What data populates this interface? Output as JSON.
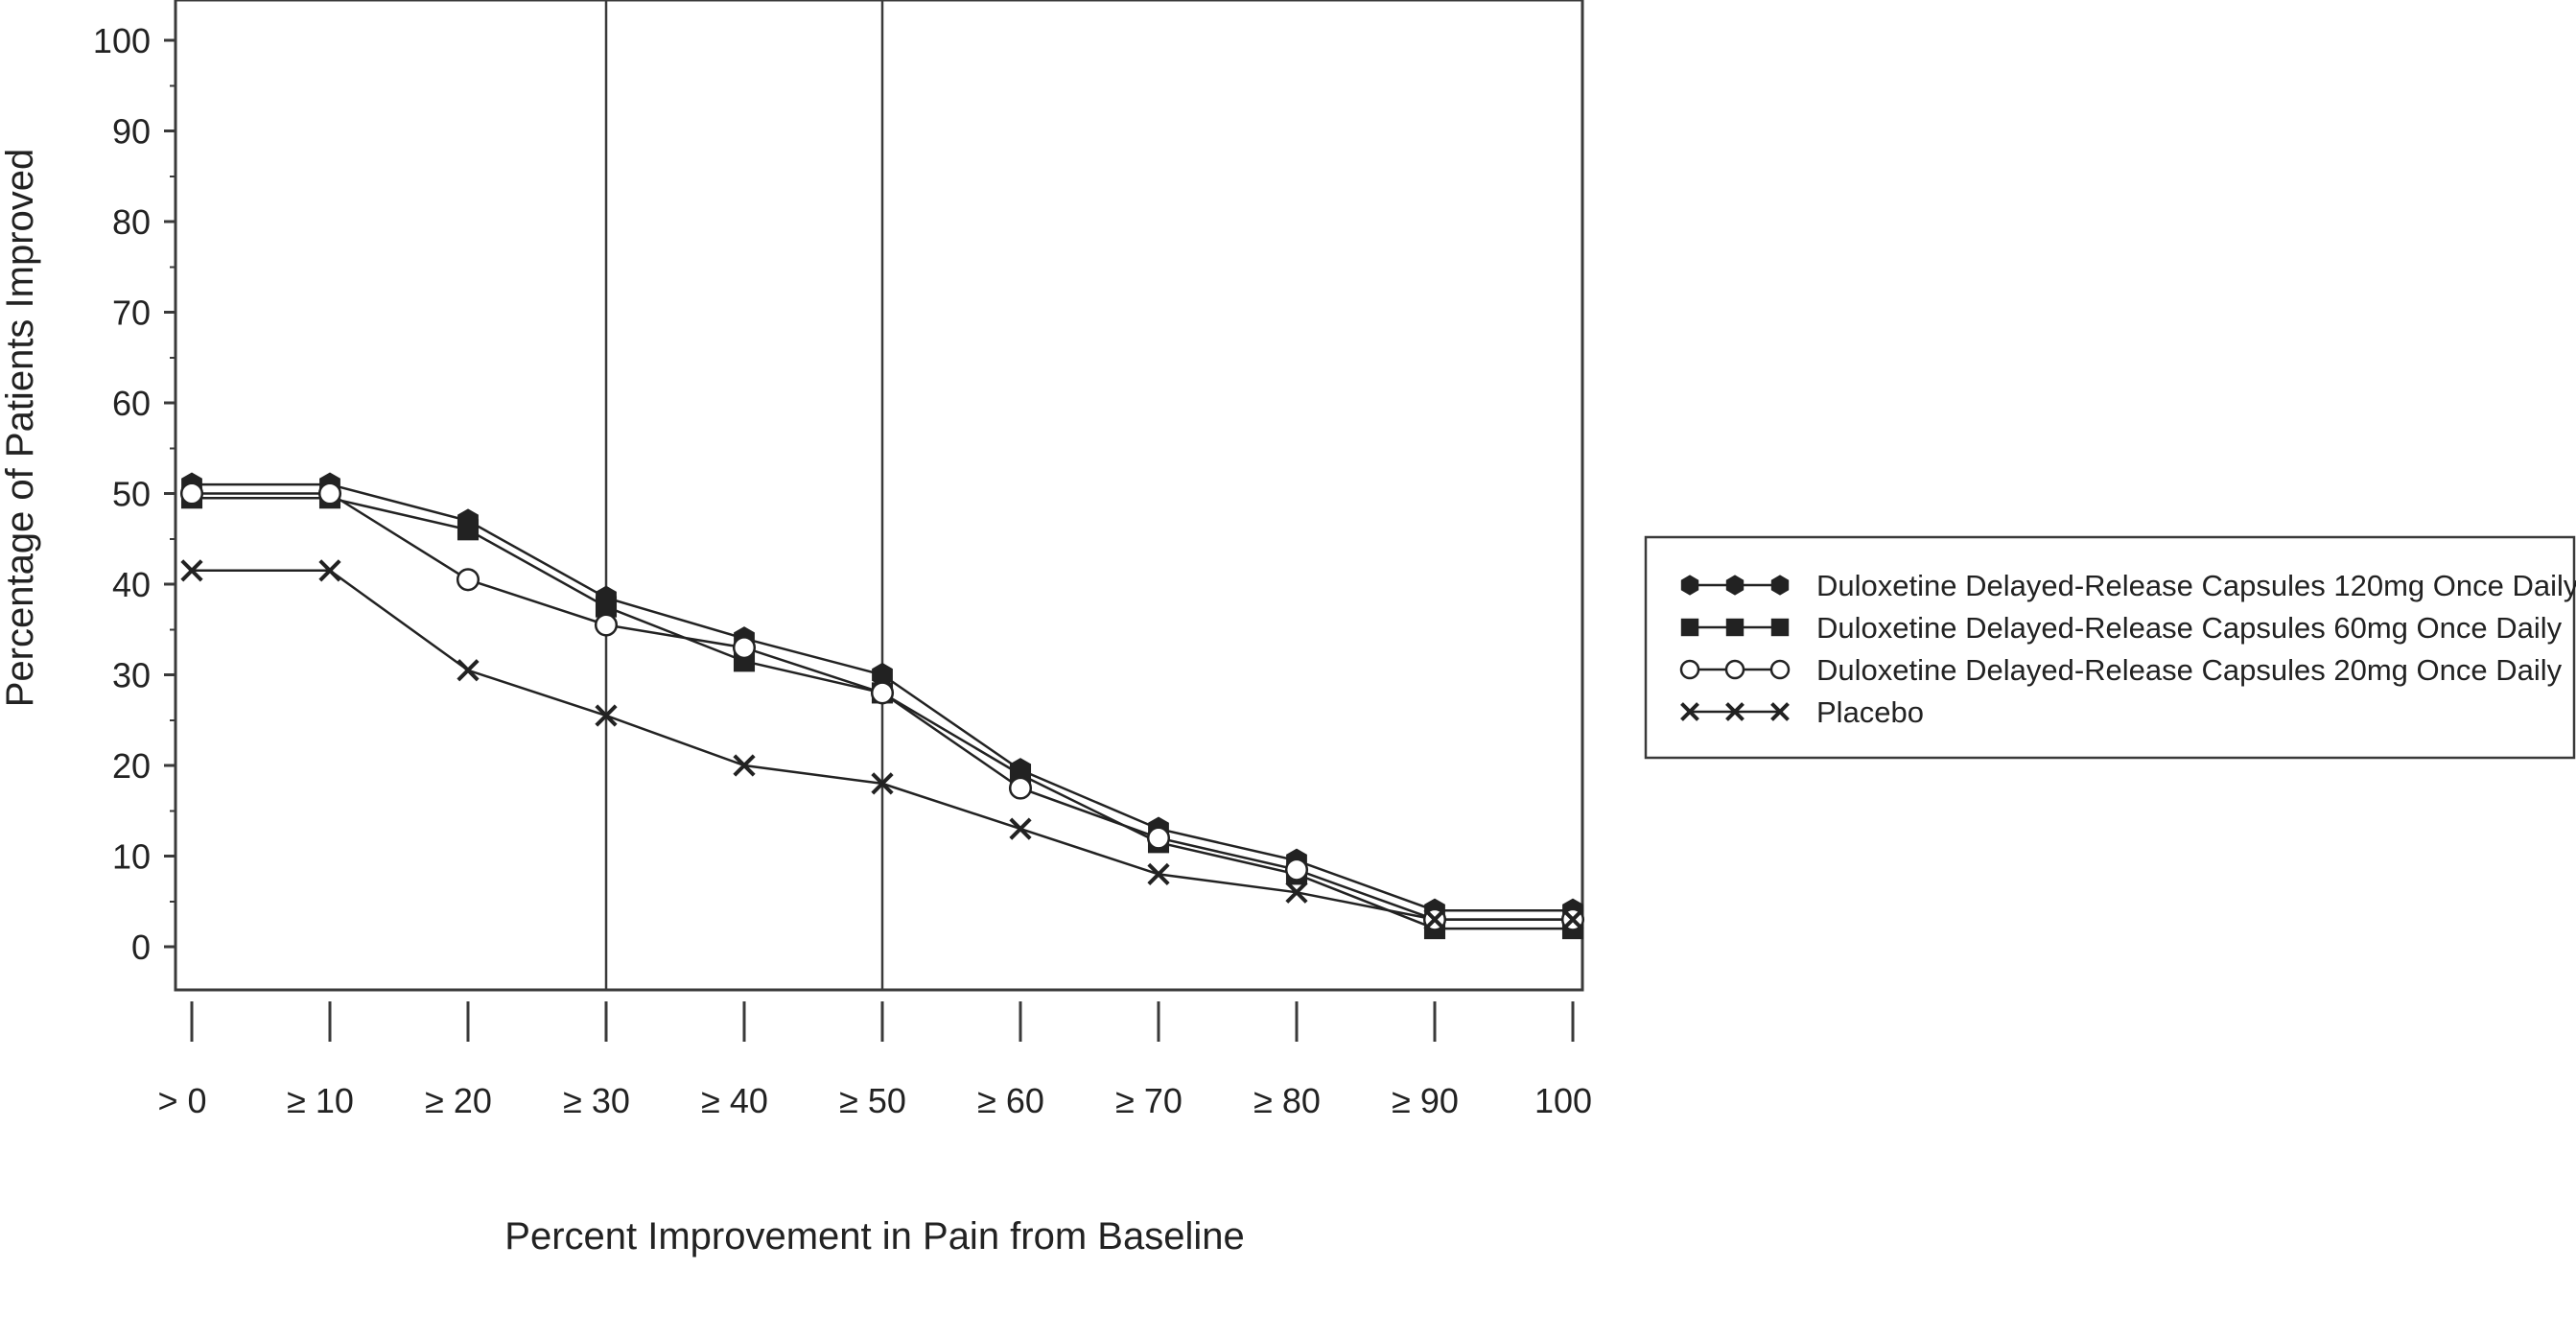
{
  "chart_data": {
    "type": "line",
    "title": "",
    "xlabel": "Percent Improvement in Pain from Baseline",
    "ylabel": "Percentage of Patients Improved",
    "categories": [
      "> 0",
      "≥ 10",
      "≥ 20",
      "≥ 30",
      "≥ 40",
      "≥ 50",
      "≥ 60",
      "≥ 70",
      "≥ 80",
      "≥ 90",
      "100"
    ],
    "y_ticks": [
      0,
      10,
      20,
      30,
      40,
      50,
      60,
      70,
      80,
      90,
      100
    ],
    "ylim": [
      -5,
      105
    ],
    "reference_lines_at": [
      "≥ 30",
      "≥ 50"
    ],
    "grid": false,
    "legend_position": "right",
    "series": [
      {
        "name": "Duloxetine Delayed-Release Capsules 120mg Once Daily",
        "marker": "filled-hexagon",
        "color": "#222222",
        "values": [
          51,
          51,
          47,
          38.5,
          34,
          30,
          19.5,
          13,
          9.5,
          4,
          4
        ]
      },
      {
        "name": "Duloxetine Delayed-Release Capsules 60mg Once Daily",
        "marker": "filled-square",
        "color": "#222222",
        "values": [
          49.5,
          49.5,
          46,
          37.5,
          31.5,
          28,
          19,
          11.5,
          8,
          2,
          2
        ]
      },
      {
        "name": "Duloxetine Delayed-Release Capsules 20mg Once Daily",
        "marker": "open-circle",
        "color": "#222222",
        "values": [
          50,
          50,
          40.5,
          35.5,
          33,
          28,
          17.5,
          12,
          8.5,
          3,
          3
        ]
      },
      {
        "name": "Placebo",
        "marker": "x",
        "color": "#222222",
        "values": [
          41.5,
          41.5,
          30.5,
          25.5,
          20,
          18,
          13,
          8,
          6,
          3,
          3
        ]
      }
    ]
  }
}
